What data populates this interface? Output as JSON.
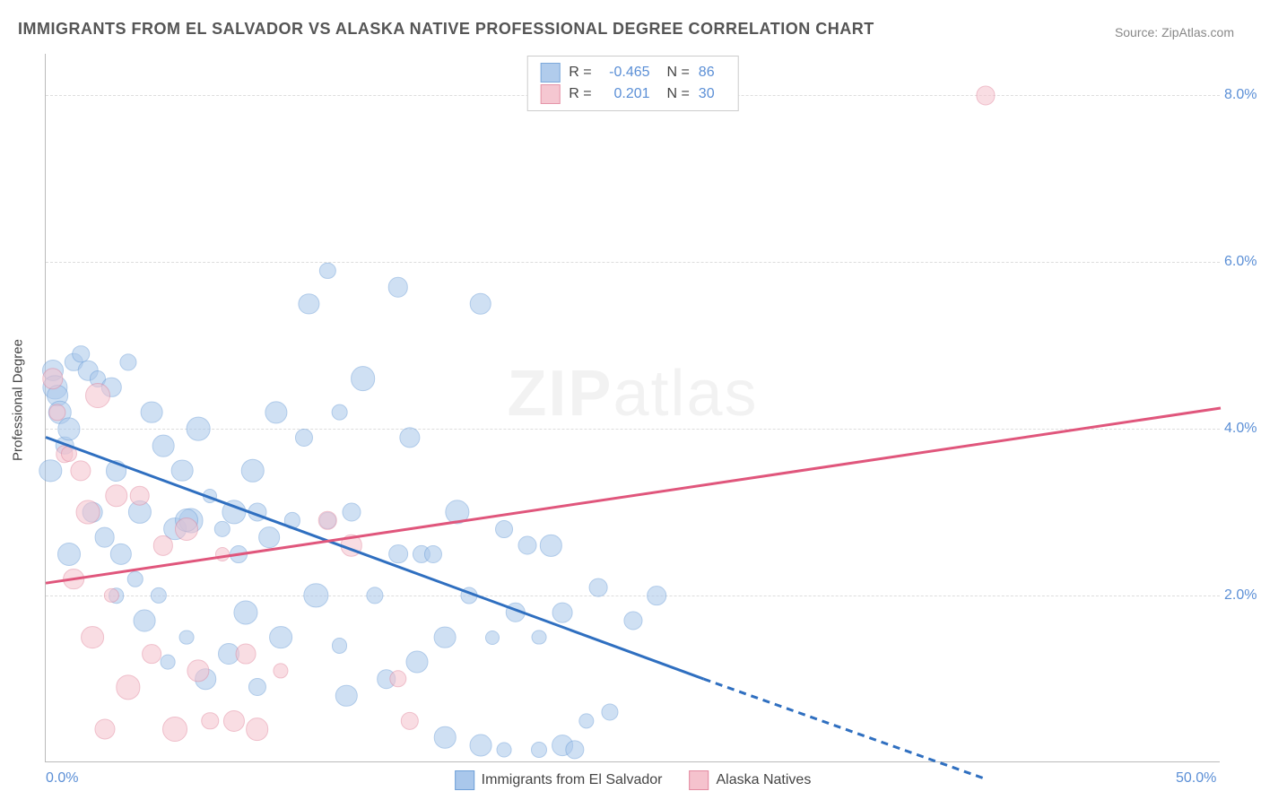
{
  "title": "IMMIGRANTS FROM EL SALVADOR VS ALASKA NATIVE PROFESSIONAL DEGREE CORRELATION CHART",
  "source_label": "Source: ",
  "source_value": "ZipAtlas.com",
  "watermark_zip": "ZIP",
  "watermark_atlas": "atlas",
  "ylabel": "Professional Degree",
  "chart": {
    "type": "scatter",
    "xlim": [
      0,
      50
    ],
    "ylim": [
      0,
      8.5
    ],
    "xtick_labels": [
      "0.0%",
      "50.0%"
    ],
    "xtick_positions": [
      0,
      50
    ],
    "ytick_labels": [
      "2.0%",
      "4.0%",
      "6.0%",
      "8.0%"
    ],
    "ytick_positions": [
      2,
      4,
      6,
      8
    ],
    "grid_color": "#dddddd",
    "background_color": "#ffffff",
    "axis_color": "#bbbbbb",
    "tick_label_color": "#5b8fd6",
    "point_radius_min": 8,
    "point_radius_max": 14,
    "series": [
      {
        "name": "Immigrants from El Salvador",
        "fill_color": "#a9c7eb",
        "fill_opacity": 0.55,
        "stroke_color": "#6fa0d8",
        "line_color": "#2f6fc0",
        "R": "-0.465",
        "N": "86",
        "trend": {
          "x1": 0,
          "y1": 3.9,
          "x2_solid": 28,
          "y2_solid": 1.0,
          "x2_dash": 40,
          "y2_dash": -0.2
        },
        "points": [
          [
            0.3,
            4.7
          ],
          [
            0.4,
            4.5
          ],
          [
            0.5,
            4.4
          ],
          [
            0.6,
            4.2
          ],
          [
            0.8,
            3.8
          ],
          [
            1.0,
            4.0
          ],
          [
            1.2,
            4.8
          ],
          [
            1.5,
            4.9
          ],
          [
            1.8,
            4.7
          ],
          [
            2.0,
            3.0
          ],
          [
            2.2,
            4.6
          ],
          [
            2.5,
            2.7
          ],
          [
            2.8,
            4.5
          ],
          [
            3.0,
            3.5
          ],
          [
            3.2,
            2.5
          ],
          [
            3.5,
            4.8
          ],
          [
            3.8,
            2.2
          ],
          [
            4.0,
            3.0
          ],
          [
            4.2,
            1.7
          ],
          [
            4.5,
            4.2
          ],
          [
            4.8,
            2.0
          ],
          [
            5.0,
            3.8
          ],
          [
            5.2,
            1.2
          ],
          [
            5.5,
            2.8
          ],
          [
            5.8,
            3.5
          ],
          [
            6.0,
            1.5
          ],
          [
            6.2,
            2.9
          ],
          [
            6.5,
            4.0
          ],
          [
            6.8,
            1.0
          ],
          [
            7.0,
            3.2
          ],
          [
            7.5,
            2.8
          ],
          [
            7.8,
            1.3
          ],
          [
            8.0,
            3.0
          ],
          [
            8.2,
            2.5
          ],
          [
            8.5,
            1.8
          ],
          [
            8.8,
            3.5
          ],
          [
            9.0,
            0.9
          ],
          [
            9.5,
            2.7
          ],
          [
            9.8,
            4.2
          ],
          [
            10.0,
            1.5
          ],
          [
            10.5,
            2.9
          ],
          [
            11.0,
            3.9
          ],
          [
            11.2,
            5.5
          ],
          [
            11.5,
            2.0
          ],
          [
            12.0,
            2.9
          ],
          [
            12.0,
            5.9
          ],
          [
            12.5,
            1.4
          ],
          [
            12.8,
            0.8
          ],
          [
            13.0,
            3.0
          ],
          [
            13.5,
            4.6
          ],
          [
            14.0,
            2.0
          ],
          [
            14.5,
            1.0
          ],
          [
            15.0,
            5.7
          ],
          [
            15.0,
            2.5
          ],
          [
            15.5,
            3.9
          ],
          [
            15.8,
            1.2
          ],
          [
            16.0,
            2.5
          ],
          [
            16.5,
            2.5
          ],
          [
            17.0,
            1.5
          ],
          [
            17.0,
            0.3
          ],
          [
            17.5,
            3.0
          ],
          [
            18.0,
            2.0
          ],
          [
            18.5,
            0.2
          ],
          [
            18.5,
            5.5
          ],
          [
            19.0,
            1.5
          ],
          [
            19.5,
            2.8
          ],
          [
            19.5,
            0.15
          ],
          [
            20.0,
            1.8
          ],
          [
            20.5,
            2.6
          ],
          [
            21.0,
            0.15
          ],
          [
            21.0,
            1.5
          ],
          [
            21.5,
            2.6
          ],
          [
            22.0,
            1.8
          ],
          [
            22.0,
            0.2
          ],
          [
            22.5,
            0.15
          ],
          [
            23.0,
            0.5
          ],
          [
            23.5,
            2.1
          ],
          [
            24.0,
            0.6
          ],
          [
            25.0,
            1.7
          ],
          [
            26.0,
            2.0
          ],
          [
            12.5,
            4.2
          ],
          [
            9.0,
            3.0
          ],
          [
            6.0,
            2.9
          ],
          [
            3.0,
            2.0
          ],
          [
            1.0,
            2.5
          ],
          [
            0.2,
            3.5
          ]
        ]
      },
      {
        "name": "Alaska Natives",
        "fill_color": "#f5c2cd",
        "fill_opacity": 0.55,
        "stroke_color": "#e38aa0",
        "line_color": "#e0567c",
        "R": "0.201",
        "N": "30",
        "trend": {
          "x1": 0,
          "y1": 2.15,
          "x2_solid": 50,
          "y2_solid": 4.25,
          "x2_dash": 50,
          "y2_dash": 4.25
        },
        "points": [
          [
            0.3,
            4.6
          ],
          [
            0.5,
            4.2
          ],
          [
            0.8,
            3.7
          ],
          [
            1.0,
            3.7
          ],
          [
            1.2,
            2.2
          ],
          [
            1.5,
            3.5
          ],
          [
            1.8,
            3.0
          ],
          [
            2.0,
            1.5
          ],
          [
            2.2,
            4.4
          ],
          [
            2.5,
            0.4
          ],
          [
            2.8,
            2.0
          ],
          [
            3.0,
            3.2
          ],
          [
            3.5,
            0.9
          ],
          [
            4.0,
            3.2
          ],
          [
            4.5,
            1.3
          ],
          [
            5.0,
            2.6
          ],
          [
            5.5,
            0.4
          ],
          [
            6.0,
            2.8
          ],
          [
            6.5,
            1.1
          ],
          [
            7.0,
            0.5
          ],
          [
            7.5,
            2.5
          ],
          [
            8.0,
            0.5
          ],
          [
            8.5,
            1.3
          ],
          [
            9.0,
            0.4
          ],
          [
            10.0,
            1.1
          ],
          [
            12.0,
            2.9
          ],
          [
            13.0,
            2.6
          ],
          [
            15.0,
            1.0
          ],
          [
            15.5,
            0.5
          ],
          [
            40.0,
            8.0
          ]
        ]
      }
    ]
  },
  "legend_bottom": [
    {
      "label": "Immigrants from El Salvador",
      "fill": "#a9c7eb",
      "stroke": "#6fa0d8"
    },
    {
      "label": "Alaska Natives",
      "fill": "#f5c2cd",
      "stroke": "#e38aa0"
    }
  ]
}
